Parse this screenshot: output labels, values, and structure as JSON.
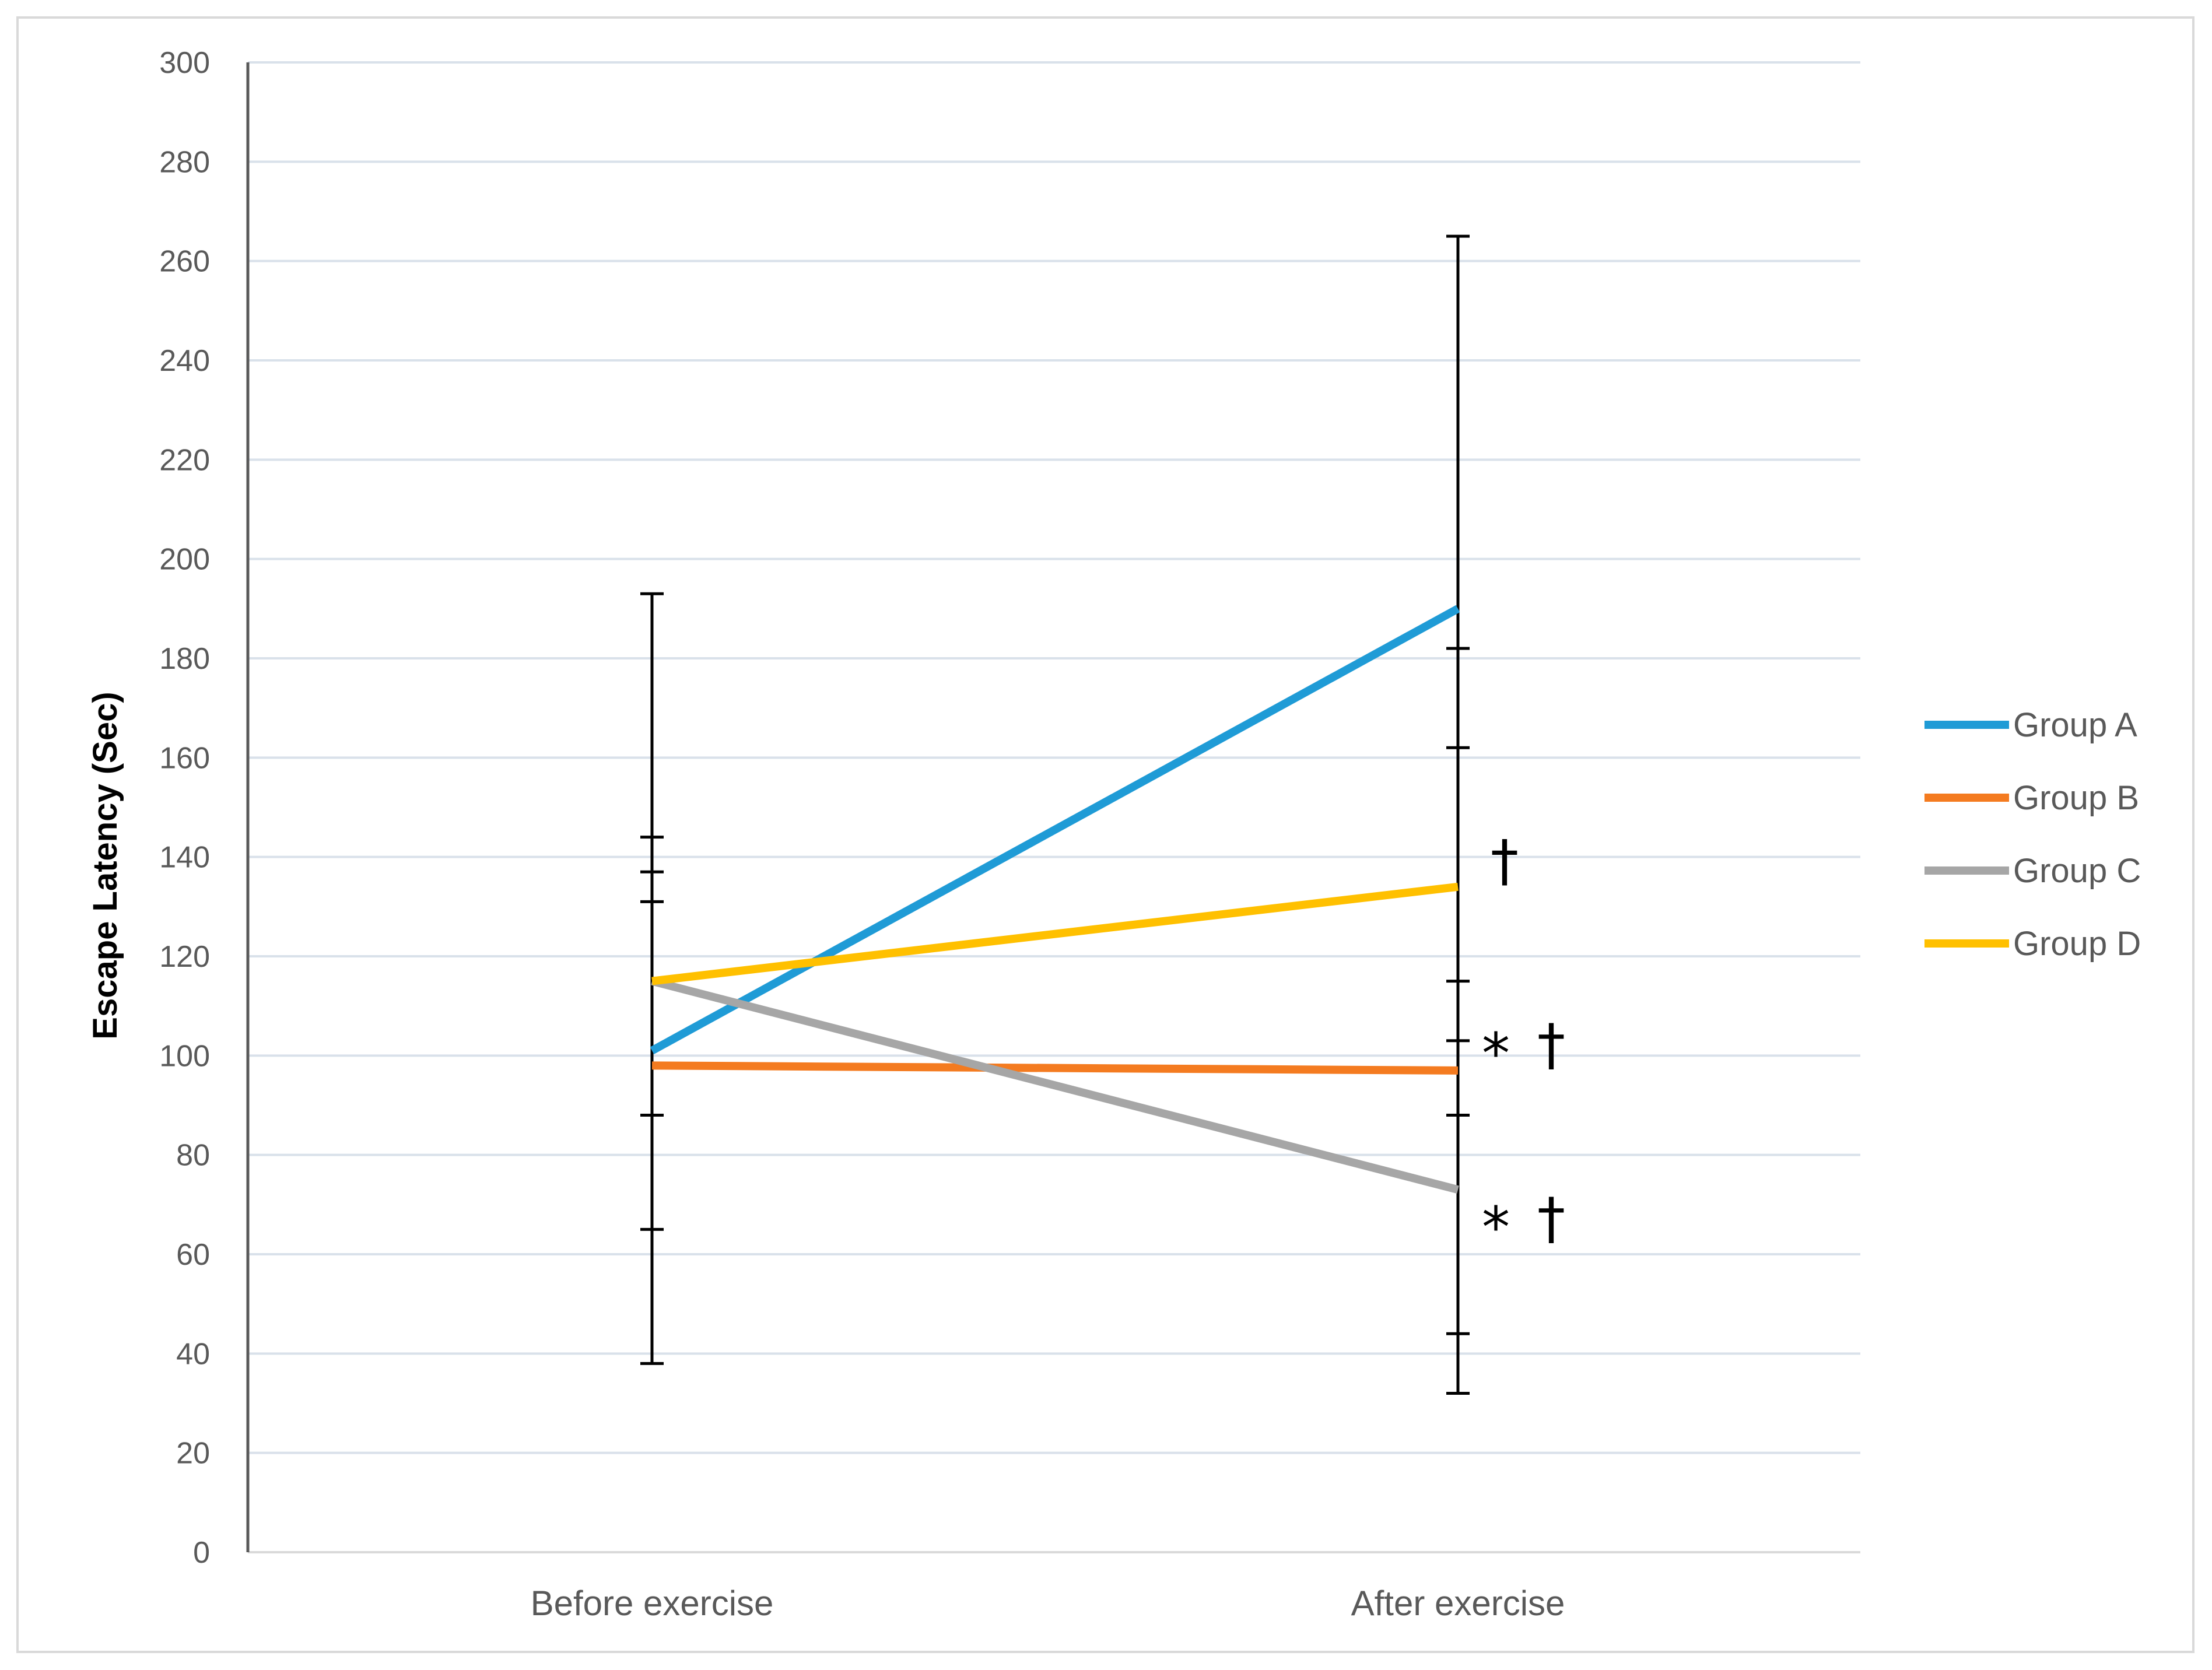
{
  "chart_data": {
    "type": "line",
    "title": "",
    "xlabel": "",
    "ylabel": "Escape Latency (Sec)",
    "ylim": [
      0,
      300
    ],
    "yticks": [
      0,
      20,
      40,
      60,
      80,
      100,
      120,
      140,
      160,
      180,
      200,
      220,
      240,
      260,
      280,
      300
    ],
    "grid": true,
    "legend_position": "right",
    "categories": [
      "Before exercise",
      "After exercise"
    ],
    "series": [
      {
        "name": "Group A",
        "color": "#1f9bd6",
        "values": [
          101,
          190
        ]
      },
      {
        "name": "Group B",
        "color": "#f47b20",
        "values": [
          98,
          97
        ]
      },
      {
        "name": "Group C",
        "color": "#a6a6a6",
        "values": [
          115,
          73
        ]
      },
      {
        "name": "Group D",
        "color": "#ffc000",
        "values": [
          115,
          134
        ]
      }
    ],
    "error_bar_caps": [
      [
        38,
        65,
        88,
        131,
        137,
        144,
        193
      ],
      [
        32,
        44,
        88,
        103,
        115,
        162,
        182,
        265
      ]
    ],
    "annotations": [
      {
        "text": "†",
        "category": 1,
        "value": 140
      },
      {
        "text": "*",
        "category": 1,
        "value": 103
      },
      {
        "text": "†",
        "category": 1,
        "value": 103
      },
      {
        "text": "*",
        "category": 1,
        "value": 68
      },
      {
        "text": "†",
        "category": 1,
        "value": 68
      }
    ]
  }
}
